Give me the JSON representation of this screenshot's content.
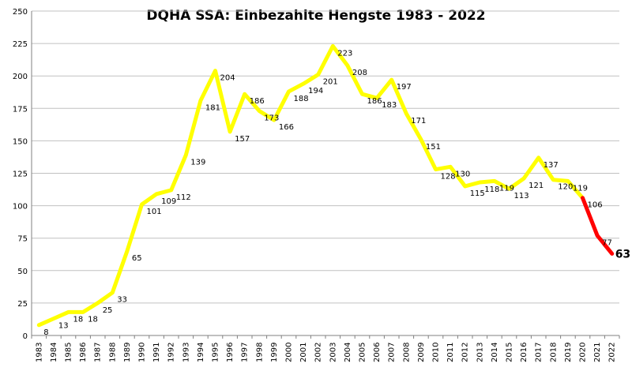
{
  "chart_data": {
    "type": "line",
    "title": "DQHA SSA: Einbezahlte Hengste 1983 - 2022",
    "xlabel": "",
    "ylabel": "",
    "ylim": [
      0,
      250
    ],
    "yticks": [
      0,
      25,
      50,
      75,
      100,
      125,
      150,
      175,
      200,
      225,
      250
    ],
    "grid": true,
    "legend": "none",
    "categories": [
      "1983",
      "1984",
      "1985",
      "1986",
      "1987",
      "1988",
      "1989",
      "1990",
      "1991",
      "1992",
      "1993",
      "1994",
      "1995",
      "1996",
      "1997",
      "1998",
      "1999",
      "2000",
      "2001",
      "2002",
      "2003",
      "2004",
      "2005",
      "2006",
      "2007",
      "2008",
      "2009",
      "2010",
      "2011",
      "2012",
      "2013",
      "2014",
      "2015",
      "2016",
      "2017",
      "2018",
      "2019",
      "2020",
      "2021",
      "2022"
    ],
    "values": [
      8,
      13,
      18,
      18,
      25,
      33,
      65,
      101,
      109,
      112,
      139,
      181,
      204,
      157,
      186,
      173,
      166,
      188,
      194,
      201,
      223,
      208,
      186,
      183,
      197,
      171,
      151,
      128,
      130,
      115,
      118,
      119,
      113,
      121,
      137,
      120,
      119,
      106,
      77,
      63
    ],
    "colors": {
      "line": "#ffff00",
      "line_recent": "#ff0000",
      "grid": "#c0c0c0",
      "axis": "#808080"
    },
    "recent_from_index": 37
  }
}
